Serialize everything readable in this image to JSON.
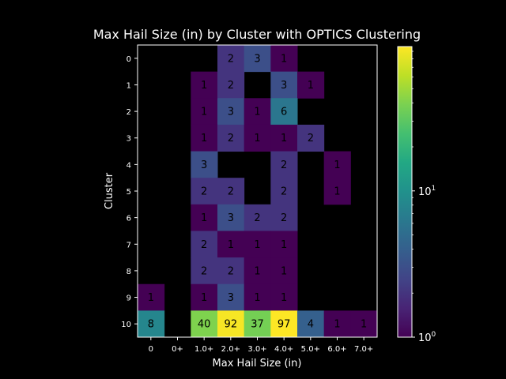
{
  "chart_data": {
    "type": "heatmap",
    "title": "Max Hail Size (in) by Cluster with OPTICS Clustering",
    "xlabel": "Max Hail Size (in)",
    "ylabel": "Cluster",
    "x_categories": [
      "0",
      "0+",
      "1.0+",
      "2.0+",
      "3.0+",
      "4.0+",
      "5.0+",
      "6.0+",
      "7.0+"
    ],
    "y_categories": [
      "0",
      "1",
      "2",
      "3",
      "4",
      "5",
      "6",
      "7",
      "8",
      "9",
      "10"
    ],
    "values": [
      [
        null,
        null,
        null,
        2,
        3,
        1,
        null,
        null,
        null
      ],
      [
        null,
        null,
        1,
        2,
        null,
        3,
        1,
        null,
        null
      ],
      [
        null,
        null,
        1,
        3,
        1,
        6,
        null,
        null,
        null
      ],
      [
        null,
        null,
        1,
        2,
        1,
        1,
        2,
        null,
        null
      ],
      [
        null,
        null,
        3,
        null,
        null,
        2,
        null,
        1,
        null
      ],
      [
        null,
        null,
        2,
        2,
        null,
        2,
        null,
        1,
        null
      ],
      [
        null,
        null,
        1,
        3,
        2,
        2,
        null,
        null,
        null
      ],
      [
        null,
        null,
        2,
        1,
        1,
        1,
        null,
        null,
        null
      ],
      [
        null,
        null,
        2,
        2,
        1,
        1,
        null,
        null,
        null
      ],
      [
        1,
        null,
        1,
        3,
        1,
        1,
        null,
        null,
        null
      ],
      [
        8,
        null,
        40,
        92,
        37,
        97,
        4,
        1,
        1
      ]
    ],
    "colormap": "viridis",
    "color_scale": "log",
    "color_range": [
      1,
      97
    ],
    "colorbar_ticks": [
      {
        "value": 1,
        "base": "10",
        "exp": "0"
      },
      {
        "value": 10,
        "base": "10",
        "exp": "1"
      }
    ],
    "background_color": "#000000",
    "foreground_color": "#ffffff",
    "annotation_color": "#000000"
  }
}
